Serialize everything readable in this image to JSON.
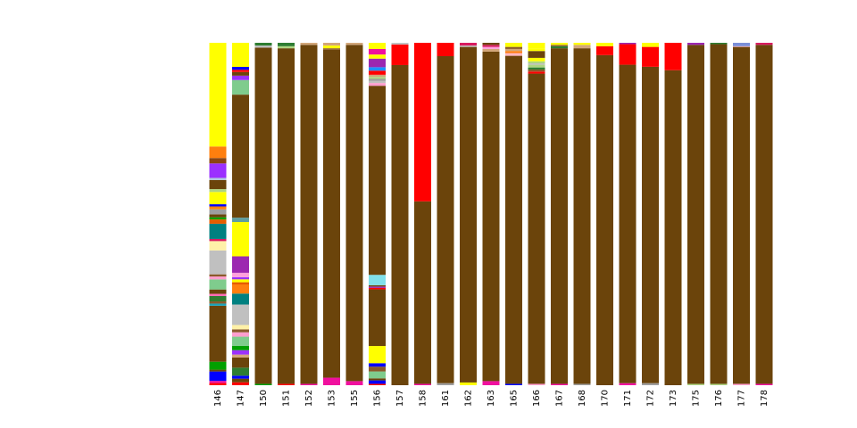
{
  "chart_data": {
    "type": "bar",
    "stacked": true,
    "normalized": true,
    "ylim": [
      0,
      1
    ],
    "grid": false,
    "legend": "none",
    "categories": [
      "146",
      "147",
      "150",
      "151",
      "152",
      "153",
      "155",
      "156",
      "157",
      "158",
      "161",
      "162",
      "163",
      "165",
      "166",
      "167",
      "168",
      "170",
      "171",
      "172",
      "173",
      "175",
      "176",
      "177",
      "178"
    ],
    "stacks": [
      [
        [
          "#ff0000",
          0.006
        ],
        [
          "#f0109e",
          0.006
        ],
        [
          "#0000ff",
          0.026
        ],
        [
          "#6b440b",
          0.005
        ],
        [
          "#00a000",
          0.022
        ],
        [
          "#6b440b",
          0.155
        ],
        [
          "#17a2b8",
          0.006
        ],
        [
          "#8b5a2b",
          0.006
        ],
        [
          "#2e7d32",
          0.015
        ],
        [
          "#ff69b4",
          0.006
        ],
        [
          "#6b440b",
          0.012
        ],
        [
          "#7fcc8d",
          0.028
        ],
        [
          "#ff9ecf",
          0.008
        ],
        [
          "#8b5a2b",
          0.006
        ],
        [
          "#c0c0c0",
          0.066
        ],
        [
          "#fff1a8",
          0.026
        ],
        [
          "#d81b60",
          0.006
        ],
        [
          "#008080",
          0.042
        ],
        [
          "#e65c00",
          0.012
        ],
        [
          "#00a000",
          0.006
        ],
        [
          "#6b440b",
          0.008
        ],
        [
          "#9e9e9e",
          0.014
        ],
        [
          "#ff7f0e",
          0.008
        ],
        [
          "#0000ff",
          0.006
        ],
        [
          "#ffff00",
          0.034
        ],
        [
          "#aed581",
          0.008
        ],
        [
          "#6b440b",
          0.025
        ],
        [
          "#b0c4de",
          0.006
        ],
        [
          "#9b30ff",
          0.04
        ],
        [
          "#8b4513",
          0.015
        ],
        [
          "#ff7f0e",
          0.032
        ],
        [
          "#ffff00",
          0.287
        ]
      ],
      [
        [
          "#ff0000",
          0.008
        ],
        [
          "#6b440b",
          0.01
        ],
        [
          "#0000ff",
          0.008
        ],
        [
          "#2e7d32",
          0.022
        ],
        [
          "#6b440b",
          0.028
        ],
        [
          "#d2a679",
          0.008
        ],
        [
          "#9b30ff",
          0.012
        ],
        [
          "#00a000",
          0.012
        ],
        [
          "#7fcc8d",
          0.025
        ],
        [
          "#ff9ecf",
          0.012
        ],
        [
          "#8b5a2b",
          0.008
        ],
        [
          "#fff1a8",
          0.012
        ],
        [
          "#c0c0c0",
          0.056
        ],
        [
          "#008080",
          0.03
        ],
        [
          "#ff7f0e",
          0.025
        ],
        [
          "#e65c00",
          0.006
        ],
        [
          "#ffff00",
          0.008
        ],
        [
          "#9b30ff",
          0.006
        ],
        [
          "#ffa0dc",
          0.012
        ],
        [
          "#9c27b0",
          0.045
        ],
        [
          "#ffff00",
          0.094
        ],
        [
          "#5f9ea0",
          0.012
        ],
        [
          "#6b440b",
          0.337
        ],
        [
          "#7fcc8d",
          0.04
        ],
        [
          "#9b30ff",
          0.012
        ],
        [
          "#6b440b",
          0.01
        ],
        [
          "#ff0000",
          0.006
        ],
        [
          "#0000ff",
          0.008
        ],
        [
          "#ffff00",
          0.066
        ]
      ],
      [
        [
          "#00a000",
          0.004
        ],
        [
          "#6b440b",
          0.982
        ],
        [
          "#c0c0c0",
          0.006
        ],
        [
          "#2e7d32",
          0.008
        ]
      ],
      [
        [
          "#ff0000",
          0.004
        ],
        [
          "#6b440b",
          0.98
        ],
        [
          "#aed581",
          0.006
        ],
        [
          "#2e7d32",
          0.01
        ]
      ],
      [
        [
          "#f0109e",
          0.004
        ],
        [
          "#6b440b",
          0.99
        ],
        [
          "#d2a679",
          0.006
        ]
      ],
      [
        [
          "#f0109e",
          0.022
        ],
        [
          "#6b440b",
          0.958
        ],
        [
          "#8b5a2b",
          0.004
        ],
        [
          "#ffff00",
          0.008
        ],
        [
          "#d2a679",
          0.008
        ]
      ],
      [
        [
          "#f0109e",
          0.012
        ],
        [
          "#6b440b",
          0.982
        ],
        [
          "#d2a679",
          0.006
        ]
      ],
      [
        [
          "#ff0000",
          0.004
        ],
        [
          "#0000ff",
          0.01
        ],
        [
          "#6b440b",
          0.006
        ],
        [
          "#7fcc8d",
          0.02
        ],
        [
          "#8b5a2b",
          0.014
        ],
        [
          "#0000ff",
          0.01
        ],
        [
          "#ffff00",
          0.05
        ],
        [
          "#6b440b",
          0.165
        ],
        [
          "#ff0000",
          0.004
        ],
        [
          "#9c27b0",
          0.004
        ],
        [
          "#6b440b",
          0.004
        ],
        [
          "#80e0ea",
          0.03
        ],
        [
          "#6b440b",
          0.55
        ],
        [
          "#ff9ecf",
          0.008
        ],
        [
          "#c0c0c0",
          0.006
        ],
        [
          "#9e9e9e",
          0.006
        ],
        [
          "#aed581",
          0.006
        ],
        [
          "#d2a679",
          0.006
        ],
        [
          "#ff0000",
          0.012
        ],
        [
          "#1e90ff",
          0.01
        ],
        [
          "#9c27b0",
          0.025
        ],
        [
          "#ffff00",
          0.012
        ],
        [
          "#f0109e",
          0.016
        ],
        [
          "#ffff00",
          0.018
        ]
      ],
      [
        [
          "#6b440b",
          0.935
        ],
        [
          "#ff0000",
          0.06
        ],
        [
          "#c0c0c0",
          0.005
        ]
      ],
      [
        [
          "#f0109e",
          0.004
        ],
        [
          "#6b440b",
          0.533
        ],
        [
          "#ff0000",
          0.463
        ]
      ],
      [
        [
          "#9e9e9e",
          0.006
        ],
        [
          "#6b440b",
          0.955
        ],
        [
          "#ff0000",
          0.039
        ]
      ],
      [
        [
          "#ffff00",
          0.008
        ],
        [
          "#6b440b",
          0.98
        ],
        [
          "#c0c0c0",
          0.004
        ],
        [
          "#d81b60",
          0.008
        ]
      ],
      [
        [
          "#f0109e",
          0.012
        ],
        [
          "#6b440b",
          0.962
        ],
        [
          "#d2a679",
          0.008
        ],
        [
          "#ffa0dc",
          0.006
        ],
        [
          "#d81b60",
          0.006
        ],
        [
          "#6b440b",
          0.006
        ]
      ],
      [
        [
          "#0000ff",
          0.004
        ],
        [
          "#6b440b",
          0.958
        ],
        [
          "#ffb6c1",
          0.008
        ],
        [
          "#ff7f0e",
          0.006
        ],
        [
          "#d2a679",
          0.006
        ],
        [
          "#8b5a2b",
          0.006
        ],
        [
          "#ffff00",
          0.012
        ]
      ],
      [
        [
          "#ff9ecf",
          0.004
        ],
        [
          "#6b440b",
          0.906
        ],
        [
          "#ff0000",
          0.006
        ],
        [
          "#8b5a2b",
          0.006
        ],
        [
          "#2e7d32",
          0.006
        ],
        [
          "#aed581",
          0.008
        ],
        [
          "#c0c0c0",
          0.004
        ],
        [
          "#aed581",
          0.006
        ],
        [
          "#ffff00",
          0.01
        ],
        [
          "#6b440b",
          0.02
        ],
        [
          "#ffff00",
          0.008
        ],
        [
          "#ffff00",
          0.016
        ]
      ],
      [
        [
          "#f0109e",
          0.004
        ],
        [
          "#6b440b",
          0.98
        ],
        [
          "#2e7d32",
          0.006
        ],
        [
          "#8b5a2b",
          0.004
        ],
        [
          "#ffff00",
          0.006
        ]
      ],
      [
        [
          "#9e9e9e",
          0.004
        ],
        [
          "#6b440b",
          0.98
        ],
        [
          "#d2a679",
          0.01
        ],
        [
          "#ffff00",
          0.006
        ]
      ],
      [
        [
          "#6b440b",
          0.964
        ],
        [
          "#ff0000",
          0.026
        ],
        [
          "#ffff00",
          0.01
        ]
      ],
      [
        [
          "#f0109e",
          0.006
        ],
        [
          "#6b440b",
          0.93
        ],
        [
          "#ff0000",
          0.06
        ],
        [
          "#9c27b0",
          0.004
        ]
      ],
      [
        [
          "#9e9e9e",
          0.006
        ],
        [
          "#6b440b",
          0.924
        ],
        [
          "#ff0000",
          0.058
        ],
        [
          "#ffff00",
          0.012
        ]
      ],
      [
        [
          "#6b440b",
          0.92
        ],
        [
          "#ff0000",
          0.08
        ]
      ],
      [
        [
          "#aed581",
          0.004
        ],
        [
          "#6b440b",
          0.99
        ],
        [
          "#9c27b0",
          0.006
        ]
      ],
      [
        [
          "#aed581",
          0.004
        ],
        [
          "#6b440b",
          0.992
        ],
        [
          "#2e7d32",
          0.004
        ]
      ],
      [
        [
          "#ff9ecf",
          0.004
        ],
        [
          "#6b440b",
          0.984
        ],
        [
          "#ffb6c1",
          0.002
        ],
        [
          "#7b8fd8",
          0.01
        ]
      ],
      [
        [
          "#f0109e",
          0.004
        ],
        [
          "#6b440b",
          0.99
        ],
        [
          "#d81b60",
          0.006
        ]
      ]
    ]
  }
}
